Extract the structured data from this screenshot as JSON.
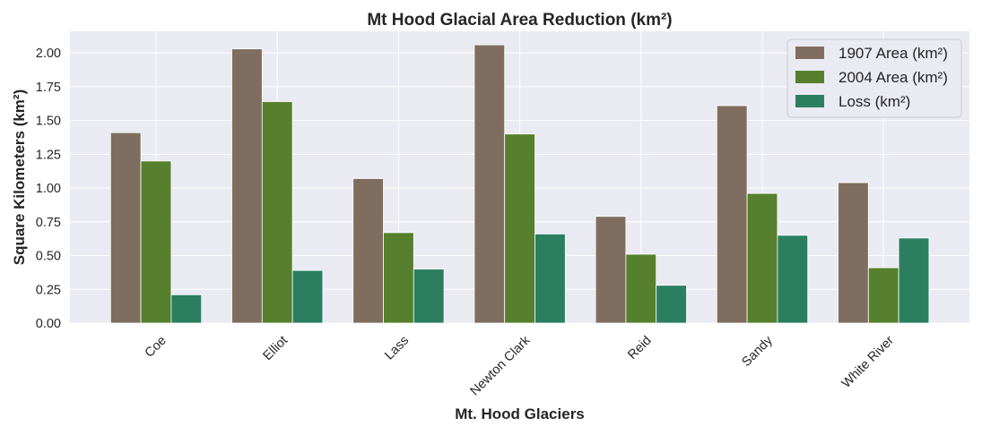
{
  "chart_data": {
    "type": "bar",
    "title": "Mt Hood Glacial Area Reduction (km²)",
    "xlabel": "Mt. Hood Glaciers",
    "ylabel": "Square Kilometers (km²)",
    "categories": [
      "Coe",
      "Elliot",
      "Lass",
      "Newton Clark",
      "Reid",
      "Sandy",
      "White River"
    ],
    "series": [
      {
        "name": "1907 Area (km²)",
        "color": "#7f6e5f",
        "values": [
          1.41,
          2.03,
          1.07,
          2.06,
          0.79,
          1.61,
          1.04
        ]
      },
      {
        "name": "2004 Area (km²)",
        "color": "#56802d",
        "values": [
          1.2,
          1.64,
          0.67,
          1.4,
          0.51,
          0.96,
          0.41
        ]
      },
      {
        "name": "Loss (km²)",
        "color": "#2b7f60",
        "values": [
          0.21,
          0.39,
          0.4,
          0.66,
          0.28,
          0.65,
          0.63
        ]
      }
    ],
    "ylim": [
      0,
      2.16
    ],
    "yticks": [
      "0.00",
      "0.25",
      "0.50",
      "0.75",
      "1.00",
      "1.25",
      "1.50",
      "1.75",
      "2.00"
    ],
    "grid": true,
    "background": "#eaeaf2",
    "legend": "top-right"
  }
}
